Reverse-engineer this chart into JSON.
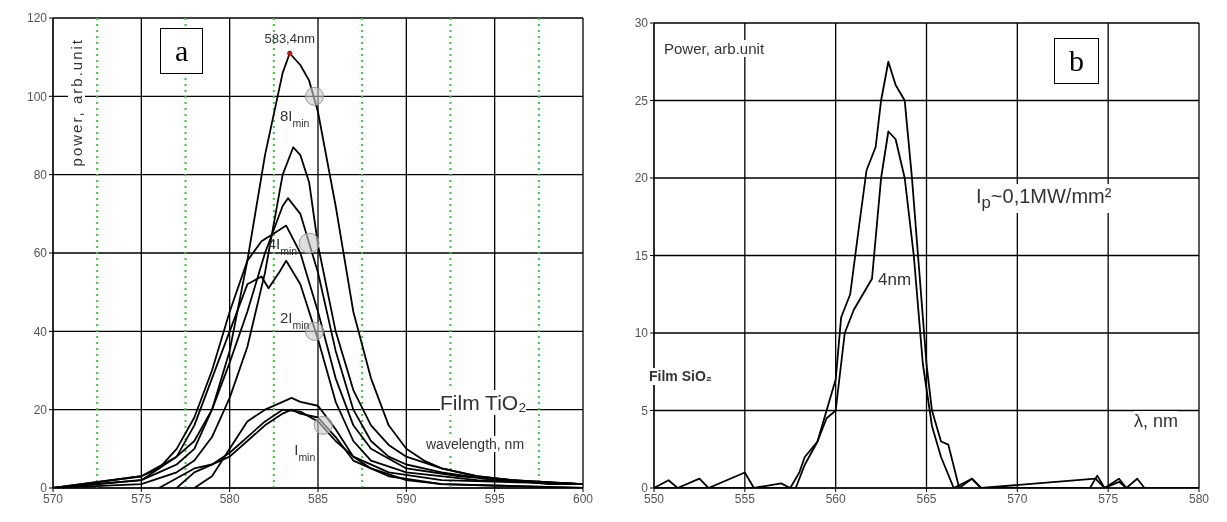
{
  "chart_data": [
    {
      "type": "line",
      "xlabel": "wavelength, nm",
      "ylabel": "power, arb.unit",
      "xlim": [
        570,
        600
      ],
      "xticks": [
        570,
        575,
        580,
        585,
        590,
        595,
        600
      ],
      "ylim": [
        0,
        120
      ],
      "yticks": [
        0,
        20,
        40,
        60,
        80,
        100,
        120
      ],
      "grid": true,
      "marker": "none",
      "line_style": "solid",
      "ref_lines": [
        {
          "axis": "x",
          "value": 572.5,
          "color": "#33cc33",
          "line_style": "dotted"
        },
        {
          "axis": "x",
          "value": 577.5,
          "color": "#33cc33",
          "line_style": "dotted"
        },
        {
          "axis": "x",
          "value": 582.5,
          "color": "#33cc33",
          "line_style": "dotted"
        },
        {
          "axis": "x",
          "value": 587.5,
          "color": "#33cc33",
          "line_style": "dotted"
        },
        {
          "axis": "x",
          "value": 592.5,
          "color": "#33cc33",
          "line_style": "dotted"
        },
        {
          "axis": "x",
          "value": 597.5,
          "color": "#33cc33",
          "line_style": "dotted"
        }
      ],
      "annotations": [
        "a",
        "Film TiO₂",
        {
          "text": "583,4nm",
          "x": 583.4,
          "y": 111
        },
        {
          "text": "8I$_{min}$",
          "x": 584.8,
          "y": 100
        },
        {
          "text": "4I$_{min}$",
          "x": 584.5,
          "y": 62.5
        },
        {
          "text": "2I$_{min}$",
          "x": 584.8,
          "y": 40
        },
        {
          "text": "I$_{min}$",
          "x": 585.3,
          "y": 16
        }
      ],
      "series": [
        {
          "color": "#000000",
          "x": [
            570,
            575,
            576,
            577,
            578,
            579,
            580,
            581,
            582,
            583,
            583.4,
            584,
            584.5,
            585,
            586,
            587,
            588,
            589,
            590,
            591,
            592,
            594,
            596,
            598,
            600
          ],
          "values": [
            0,
            2,
            4,
            6,
            10,
            20,
            35,
            58,
            85,
            106,
            111,
            108,
            104,
            96,
            72,
            45,
            28,
            16,
            10,
            7,
            5,
            3,
            2,
            1,
            1
          ]
        },
        {
          "color": "#000000",
          "x": [
            570,
            575,
            577,
            578,
            579,
            580,
            581,
            582,
            583,
            583.6,
            584,
            584.5,
            585,
            586,
            587,
            588,
            589,
            590,
            592,
            594,
            596,
            600
          ],
          "values": [
            0,
            1,
            4,
            7,
            13,
            23,
            36,
            55,
            80,
            87,
            85,
            78,
            62,
            40,
            25,
            16,
            11,
            8,
            5,
            3,
            2,
            1
          ]
        },
        {
          "color": "#000000",
          "x": [
            570,
            575,
            577,
            578,
            579,
            580,
            581,
            582,
            583,
            583.3,
            584,
            585,
            586,
            587,
            588,
            589,
            590,
            592,
            595,
            600
          ],
          "values": [
            0,
            2,
            8,
            12,
            20,
            32,
            45,
            60,
            72,
            74,
            70,
            55,
            35,
            20,
            12,
            8,
            6,
            4,
            2,
            1
          ]
        },
        {
          "color": "#000000",
          "x": [
            570,
            575,
            576,
            577,
            578,
            579,
            580,
            581,
            581.8,
            582.5,
            583.2,
            584,
            585,
            586,
            587,
            588,
            590,
            593,
            596,
            600
          ],
          "values": [
            0,
            3,
            5,
            10,
            18,
            30,
            45,
            58,
            63,
            65,
            67,
            60,
            45,
            28,
            16,
            10,
            5,
            3,
            2,
            1
          ]
        },
        {
          "color": "#000000",
          "x": [
            570,
            575,
            577,
            578,
            579,
            580,
            581,
            581.8,
            582.2,
            582.8,
            583.2,
            584,
            585,
            586,
            587,
            588,
            590,
            594,
            600
          ],
          "values": [
            0,
            3,
            8,
            16,
            28,
            40,
            52,
            54,
            51,
            55,
            58,
            52,
            38,
            22,
            12,
            7,
            4,
            2,
            1
          ]
        },
        {
          "color": "#000000",
          "x": [
            578,
            579,
            580,
            581,
            582,
            583,
            583.5,
            584,
            585,
            586,
            587,
            588,
            590,
            592,
            600
          ],
          "values": [
            0,
            3,
            10,
            17,
            20,
            22,
            23,
            22,
            21,
            15,
            8,
            5,
            2,
            1,
            0
          ]
        },
        {
          "color": "#000000",
          "x": [
            577,
            578,
            580,
            581,
            582,
            583,
            583.5,
            584,
            585,
            586,
            587,
            589,
            592,
            600
          ],
          "values": [
            0,
            4,
            8,
            12,
            16,
            19,
            20,
            19,
            18,
            13,
            7,
            3,
            1,
            0
          ]
        },
        {
          "color": "#000000",
          "x": [
            576,
            578,
            579,
            580,
            581,
            582,
            583,
            584,
            585,
            586,
            587,
            589,
            592,
            600
          ],
          "values": [
            0,
            5,
            6,
            9,
            13,
            17,
            20,
            19.5,
            17,
            12,
            8,
            4,
            2,
            1
          ]
        }
      ]
    },
    {
      "type": "line",
      "xlabel": "λ, nm",
      "ylabel": "Power, arb.unit",
      "xlim": [
        550,
        580
      ],
      "xticks": [
        550,
        555,
        560,
        565,
        570,
        575,
        580
      ],
      "ylim": [
        0,
        30
      ],
      "yticks": [
        0,
        5,
        10,
        15,
        20,
        25,
        30
      ],
      "grid": true,
      "marker": "none",
      "line_style": "solid",
      "annotations": [
        "b",
        "I$_{p}$~0,1MW/mm²",
        "Film SiO₂",
        "4nm"
      ],
      "series": [
        {
          "color": "#000000",
          "x": [
            550,
            550.8,
            551.3,
            552.5,
            553,
            555,
            555.5,
            557,
            557.5,
            558,
            558.3,
            559,
            559.5,
            560,
            560.3,
            560.8,
            561.3,
            561.7,
            562.2,
            562.5,
            562.9,
            563.3,
            563.8,
            564.2,
            564.6,
            565,
            565.3,
            565.8,
            566.2,
            566.8,
            567.5,
            568,
            574,
            574.4,
            574.8,
            575.6,
            576,
            576.6,
            577,
            580
          ],
          "values": [
            0,
            0.5,
            0,
            0.6,
            0,
            1,
            0,
            0.3,
            0,
            1,
            2,
            3,
            5,
            7,
            11,
            12.5,
            17,
            20.5,
            22,
            25,
            27.5,
            26,
            25,
            20,
            14,
            8,
            5,
            3,
            2.8,
            0,
            0.6,
            0,
            0,
            0.8,
            0,
            0.6,
            0,
            0.6,
            0,
            0
          ]
        },
        {
          "color": "#000000",
          "x": [
            550,
            557.8,
            558.3,
            559,
            559.5,
            560,
            560.5,
            561,
            561.5,
            562,
            562.5,
            562.9,
            563.3,
            563.8,
            564.3,
            564.8,
            565.3,
            565.8,
            566.5,
            567.5,
            568,
            574.3,
            574.8,
            575.6,
            576,
            580
          ],
          "values": [
            0,
            0,
            1.5,
            3,
            4.5,
            5,
            10,
            11.5,
            12.5,
            13.5,
            20,
            23,
            22.5,
            20,
            15,
            8,
            4,
            2,
            0,
            0.6,
            0,
            0.6,
            0,
            0.4,
            0,
            0
          ]
        }
      ]
    }
  ]
}
